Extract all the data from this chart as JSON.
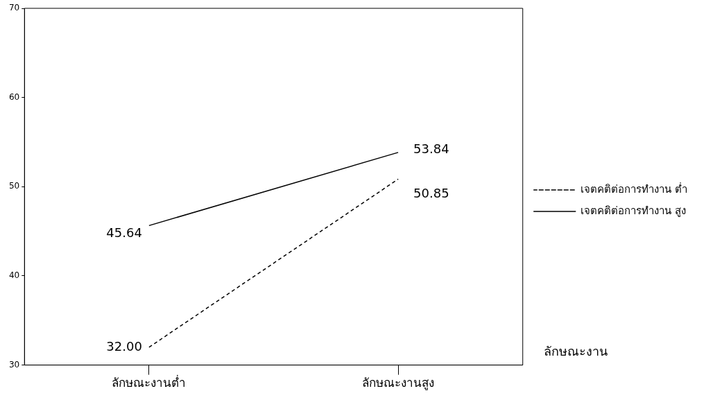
{
  "chart_data": {
    "type": "line",
    "xlabel": "ลักษณะงาน",
    "categories": [
      "ลักษณะงานต่ำ",
      "ลักษณะงานสูง"
    ],
    "series": [
      {
        "name": "เจตคติต่อการทำงาน ต่ำ",
        "color": "#000000",
        "values": [
          32.0,
          50.85
        ],
        "value_labels": [
          "32.00",
          "50.85"
        ],
        "line_style": "dashed"
      },
      {
        "name": "เจตคติต่อการทำงาน สูง",
        "color": "#000000",
        "values": [
          45.64,
          53.84
        ],
        "value_labels": [
          "45.64",
          "53.84"
        ],
        "line_style": "solid"
      }
    ],
    "ylim": [
      30,
      70
    ],
    "yticks": [
      30,
      40,
      50,
      60,
      70
    ],
    "grid": false,
    "legend": "right",
    "marker": "none"
  }
}
